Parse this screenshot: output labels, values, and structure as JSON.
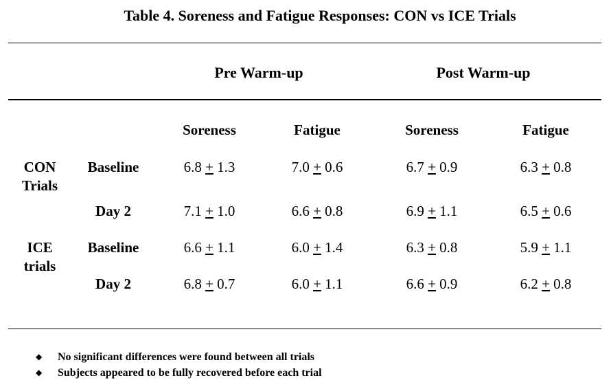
{
  "title": "Table 4.  Soreness and Fatigue Responses: CON vs ICE Trials",
  "column_groups": [
    "Pre Warm-up",
    "Post Warm-up"
  ],
  "columns": [
    "Soreness",
    "Fatigue",
    "Soreness",
    "Fatigue"
  ],
  "plus_minus_symbol": "+",
  "row_groups": [
    {
      "label_line1": "CON",
      "label_line2": "Trials",
      "rows": [
        {
          "label": "Baseline",
          "cells": [
            {
              "mean": "6.8",
              "sd": "1.3"
            },
            {
              "mean": "7.0",
              "sd": "0.6"
            },
            {
              "mean": "6.7",
              "sd": "0.9"
            },
            {
              "mean": "6.3",
              "sd": "0.8"
            }
          ]
        },
        {
          "label": "Day 2",
          "cells": [
            {
              "mean": "7.1",
              "sd": "1.0"
            },
            {
              "mean": "6.6",
              "sd": "0.8"
            },
            {
              "mean": "6.9",
              "sd": "1.1"
            },
            {
              "mean": "6.5",
              "sd": "0.6"
            }
          ]
        }
      ]
    },
    {
      "label_line1": "ICE",
      "label_line2": "trials",
      "rows": [
        {
          "label": "Baseline",
          "cells": [
            {
              "mean": "6.6",
              "sd": "1.1"
            },
            {
              "mean": "6.0",
              "sd": "1.4"
            },
            {
              "mean": "6.3",
              "sd": "0.8"
            },
            {
              "mean": "5.9",
              "sd": "1.1"
            }
          ]
        },
        {
          "label": "Day 2",
          "cells": [
            {
              "mean": "6.8",
              "sd": "0.7"
            },
            {
              "mean": "6.0",
              "sd": "1.1"
            },
            {
              "mean": "6.6",
              "sd": "0.9"
            },
            {
              "mean": "6.2",
              "sd": "0.8"
            }
          ]
        }
      ]
    }
  ],
  "notes": [
    {
      "bullet": "◆",
      "text": "No significant differences were found between all trials"
    },
    {
      "bullet": "◆",
      "text": "Subjects appeared to be fully recovered before each trial"
    }
  ]
}
